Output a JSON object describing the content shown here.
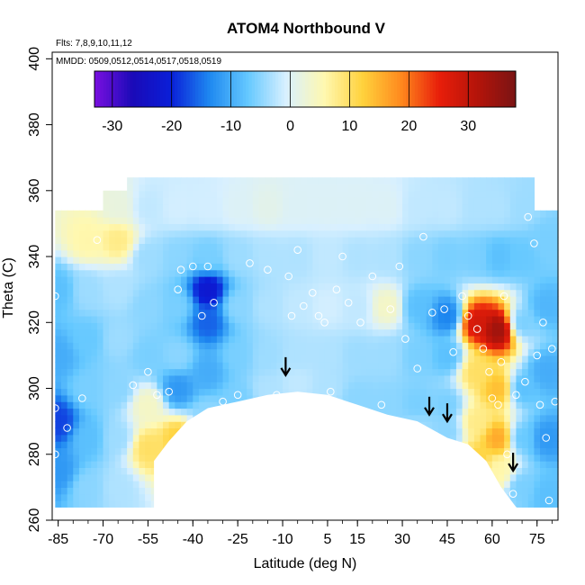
{
  "chart_data": {
    "type": "heatmap",
    "title": "ATOM4 Northbound V",
    "subtitle_flights": "Flts: 7,8,9,10,11,12",
    "subtitle_dates": "MMDD: 0509,0512,0514,0517,0518,0519",
    "xlabel": "Latitude (deg N)",
    "ylabel": "Theta (C)",
    "xlim": [
      -87,
      82
    ],
    "ylim": [
      260,
      402
    ],
    "x_ticks": [
      -85,
      -70,
      -55,
      -40,
      -25,
      -10,
      5,
      15,
      30,
      45,
      60,
      75
    ],
    "y_ticks": [
      260,
      280,
      300,
      320,
      340,
      360,
      380,
      400
    ],
    "colorbar": {
      "range": [
        -33,
        38
      ],
      "tick_values": [
        -30,
        -20,
        -10,
        0,
        10,
        20,
        30
      ],
      "colors": [
        "#7a10e0",
        "#1a0ab8",
        "#0a1fd8",
        "#1e88f0",
        "#64c8ff",
        "#d8f0ff",
        "#fff8b0",
        "#ffd23c",
        "#ff8a1e",
        "#e81e0a",
        "#b4140a",
        "#7a1414"
      ]
    },
    "cells": [
      {
        "lat": -85,
        "theta": 330,
        "v": -8
      },
      {
        "lat": -85,
        "theta": 310,
        "v": -10
      },
      {
        "lat": -85,
        "theta": 290,
        "v": -18
      },
      {
        "lat": -85,
        "theta": 275,
        "v": -12
      },
      {
        "lat": -75,
        "theta": 345,
        "v": 6
      },
      {
        "lat": -75,
        "theta": 330,
        "v": -4
      },
      {
        "lat": -75,
        "theta": 315,
        "v": -7
      },
      {
        "lat": -75,
        "theta": 300,
        "v": -6
      },
      {
        "lat": -75,
        "theta": 285,
        "v": -8
      },
      {
        "lat": -75,
        "theta": 270,
        "v": -5
      },
      {
        "lat": -65,
        "theta": 355,
        "v": 2
      },
      {
        "lat": -65,
        "theta": 345,
        "v": 8
      },
      {
        "lat": -65,
        "theta": 330,
        "v": -3
      },
      {
        "lat": -65,
        "theta": 315,
        "v": -4
      },
      {
        "lat": -65,
        "theta": 300,
        "v": -5
      },
      {
        "lat": -65,
        "theta": 285,
        "v": -4
      },
      {
        "lat": -65,
        "theta": 270,
        "v": -3
      },
      {
        "lat": -55,
        "theta": 355,
        "v": -2
      },
      {
        "lat": -55,
        "theta": 340,
        "v": -4
      },
      {
        "lat": -55,
        "theta": 325,
        "v": -5
      },
      {
        "lat": -55,
        "theta": 310,
        "v": -6
      },
      {
        "lat": -55,
        "theta": 295,
        "v": 4
      },
      {
        "lat": -55,
        "theta": 282,
        "v": 10
      },
      {
        "lat": -45,
        "theta": 355,
        "v": -1
      },
      {
        "lat": -45,
        "theta": 340,
        "v": -5
      },
      {
        "lat": -45,
        "theta": 325,
        "v": -6
      },
      {
        "lat": -45,
        "theta": 310,
        "v": -5
      },
      {
        "lat": -45,
        "theta": 300,
        "v": -12
      },
      {
        "lat": -45,
        "theta": 285,
        "v": 12
      },
      {
        "lat": -35,
        "theta": 355,
        "v": -1
      },
      {
        "lat": -35,
        "theta": 340,
        "v": -6
      },
      {
        "lat": -35,
        "theta": 330,
        "v": -22
      },
      {
        "lat": -35,
        "theta": 320,
        "v": -16
      },
      {
        "lat": -35,
        "theta": 305,
        "v": -10
      },
      {
        "lat": -35,
        "theta": 292,
        "v": -5
      },
      {
        "lat": -25,
        "theta": 355,
        "v": 0
      },
      {
        "lat": -25,
        "theta": 340,
        "v": -4
      },
      {
        "lat": -25,
        "theta": 325,
        "v": -5
      },
      {
        "lat": -25,
        "theta": 310,
        "v": -6
      },
      {
        "lat": -25,
        "theta": 297,
        "v": -6
      },
      {
        "lat": -15,
        "theta": 355,
        "v": 1
      },
      {
        "lat": -15,
        "theta": 340,
        "v": -3
      },
      {
        "lat": -15,
        "theta": 325,
        "v": -3
      },
      {
        "lat": -15,
        "theta": 310,
        "v": -4
      },
      {
        "lat": -15,
        "theta": 300,
        "v": -3
      },
      {
        "lat": -5,
        "theta": 355,
        "v": 0
      },
      {
        "lat": -5,
        "theta": 340,
        "v": -3
      },
      {
        "lat": -5,
        "theta": 325,
        "v": -2
      },
      {
        "lat": -5,
        "theta": 310,
        "v": -3
      },
      {
        "lat": -5,
        "theta": 302,
        "v": -2
      },
      {
        "lat": 5,
        "theta": 355,
        "v": 0
      },
      {
        "lat": 5,
        "theta": 340,
        "v": -2
      },
      {
        "lat": 5,
        "theta": 325,
        "v": -1
      },
      {
        "lat": 5,
        "theta": 310,
        "v": -3
      },
      {
        "lat": 5,
        "theta": 300,
        "v": -3
      },
      {
        "lat": 15,
        "theta": 355,
        "v": 0
      },
      {
        "lat": 15,
        "theta": 340,
        "v": -3
      },
      {
        "lat": 15,
        "theta": 325,
        "v": -2
      },
      {
        "lat": 15,
        "theta": 310,
        "v": -4
      },
      {
        "lat": 15,
        "theta": 297,
        "v": -5
      },
      {
        "lat": 25,
        "theta": 355,
        "v": 0
      },
      {
        "lat": 25,
        "theta": 340,
        "v": -3
      },
      {
        "lat": 25,
        "theta": 325,
        "v": 4
      },
      {
        "lat": 25,
        "theta": 310,
        "v": -4
      },
      {
        "lat": 25,
        "theta": 295,
        "v": -5
      },
      {
        "lat": 35,
        "theta": 355,
        "v": -2
      },
      {
        "lat": 35,
        "theta": 340,
        "v": -5
      },
      {
        "lat": 35,
        "theta": 325,
        "v": -8
      },
      {
        "lat": 35,
        "theta": 310,
        "v": -6
      },
      {
        "lat": 35,
        "theta": 295,
        "v": -6
      },
      {
        "lat": 35,
        "theta": 288,
        "v": -4
      },
      {
        "lat": 45,
        "theta": 355,
        "v": -2
      },
      {
        "lat": 45,
        "theta": 340,
        "v": -6
      },
      {
        "lat": 45,
        "theta": 322,
        "v": -14
      },
      {
        "lat": 45,
        "theta": 310,
        "v": -8
      },
      {
        "lat": 45,
        "theta": 295,
        "v": -6
      },
      {
        "lat": 45,
        "theta": 287,
        "v": -5
      },
      {
        "lat": 55,
        "theta": 355,
        "v": -3
      },
      {
        "lat": 55,
        "theta": 340,
        "v": -6
      },
      {
        "lat": 55,
        "theta": 320,
        "v": 28
      },
      {
        "lat": 55,
        "theta": 305,
        "v": 10
      },
      {
        "lat": 55,
        "theta": 290,
        "v": 8
      },
      {
        "lat": 55,
        "theta": 278,
        "v": 12
      },
      {
        "lat": 62,
        "theta": 355,
        "v": -3
      },
      {
        "lat": 62,
        "theta": 340,
        "v": -8
      },
      {
        "lat": 62,
        "theta": 318,
        "v": 34
      },
      {
        "lat": 62,
        "theta": 300,
        "v": 14
      },
      {
        "lat": 62,
        "theta": 285,
        "v": 16
      },
      {
        "lat": 62,
        "theta": 275,
        "v": 6
      },
      {
        "lat": 70,
        "theta": 355,
        "v": -4
      },
      {
        "lat": 70,
        "theta": 340,
        "v": -7
      },
      {
        "lat": 70,
        "theta": 320,
        "v": -6
      },
      {
        "lat": 70,
        "theta": 300,
        "v": -8
      },
      {
        "lat": 70,
        "theta": 285,
        "v": -7
      },
      {
        "lat": 70,
        "theta": 270,
        "v": -6
      },
      {
        "lat": 78,
        "theta": 345,
        "v": -6
      },
      {
        "lat": 78,
        "theta": 325,
        "v": -9
      },
      {
        "lat": 78,
        "theta": 305,
        "v": -10
      },
      {
        "lat": 78,
        "theta": 285,
        "v": -12
      },
      {
        "lat": 78,
        "theta": 268,
        "v": -8
      }
    ],
    "observations": [
      {
        "lat": -86,
        "theta": 328
      },
      {
        "lat": -82,
        "theta": 288
      },
      {
        "lat": -86,
        "theta": 294
      },
      {
        "lat": -86,
        "theta": 280
      },
      {
        "lat": -72,
        "theta": 345
      },
      {
        "lat": -77,
        "theta": 297
      },
      {
        "lat": -60,
        "theta": 301
      },
      {
        "lat": -55,
        "theta": 305
      },
      {
        "lat": -52,
        "theta": 298
      },
      {
        "lat": -48,
        "theta": 299
      },
      {
        "lat": -45,
        "theta": 330
      },
      {
        "lat": -44,
        "theta": 336
      },
      {
        "lat": -40,
        "theta": 337
      },
      {
        "lat": -37,
        "theta": 322
      },
      {
        "lat": -35,
        "theta": 337
      },
      {
        "lat": -33,
        "theta": 326
      },
      {
        "lat": -30,
        "theta": 296
      },
      {
        "lat": -25,
        "theta": 298
      },
      {
        "lat": -21,
        "theta": 338
      },
      {
        "lat": -15,
        "theta": 336
      },
      {
        "lat": -12,
        "theta": 298
      },
      {
        "lat": -8,
        "theta": 334
      },
      {
        "lat": -7,
        "theta": 322
      },
      {
        "lat": -5,
        "theta": 342
      },
      {
        "lat": -3,
        "theta": 325
      },
      {
        "lat": 0,
        "theta": 329
      },
      {
        "lat": 2,
        "theta": 322
      },
      {
        "lat": 4,
        "theta": 320
      },
      {
        "lat": 6,
        "theta": 299
      },
      {
        "lat": 8,
        "theta": 330
      },
      {
        "lat": 10,
        "theta": 340
      },
      {
        "lat": 12,
        "theta": 326
      },
      {
        "lat": 16,
        "theta": 320
      },
      {
        "lat": 20,
        "theta": 334
      },
      {
        "lat": 23,
        "theta": 295
      },
      {
        "lat": 26,
        "theta": 324
      },
      {
        "lat": 29,
        "theta": 337
      },
      {
        "lat": 31,
        "theta": 315
      },
      {
        "lat": 35,
        "theta": 306
      },
      {
        "lat": 37,
        "theta": 346
      },
      {
        "lat": 40,
        "theta": 323
      },
      {
        "lat": 44,
        "theta": 324
      },
      {
        "lat": 47,
        "theta": 311
      },
      {
        "lat": 50,
        "theta": 328
      },
      {
        "lat": 52,
        "theta": 322
      },
      {
        "lat": 55,
        "theta": 318
      },
      {
        "lat": 57,
        "theta": 312
      },
      {
        "lat": 59,
        "theta": 305
      },
      {
        "lat": 60,
        "theta": 297
      },
      {
        "lat": 62,
        "theta": 295
      },
      {
        "lat": 63,
        "theta": 308
      },
      {
        "lat": 64,
        "theta": 328
      },
      {
        "lat": 65,
        "theta": 280
      },
      {
        "lat": 67,
        "theta": 268
      },
      {
        "lat": 68,
        "theta": 298
      },
      {
        "lat": 71,
        "theta": 302
      },
      {
        "lat": 72,
        "theta": 352
      },
      {
        "lat": 74,
        "theta": 344
      },
      {
        "lat": 75,
        "theta": 310
      },
      {
        "lat": 76,
        "theta": 295
      },
      {
        "lat": 77,
        "theta": 320
      },
      {
        "lat": 78,
        "theta": 285
      },
      {
        "lat": 79,
        "theta": 266
      },
      {
        "lat": 78,
        "theta": 356
      },
      {
        "lat": 80,
        "theta": 312
      },
      {
        "lat": 81,
        "theta": 296
      }
    ],
    "terrain_boundary": [
      [
        -53,
        260
      ],
      [
        -53,
        278
      ],
      [
        -48,
        284
      ],
      [
        -42,
        290
      ],
      [
        -35,
        294
      ],
      [
        -25,
        296
      ],
      [
        -15,
        298
      ],
      [
        -5,
        299
      ],
      [
        5,
        298
      ],
      [
        15,
        295
      ],
      [
        25,
        292
      ],
      [
        35,
        290
      ],
      [
        45,
        285
      ],
      [
        52,
        283
      ],
      [
        58,
        278
      ],
      [
        63,
        270
      ],
      [
        68,
        264
      ],
      [
        72,
        262
      ],
      [
        75,
        260
      ]
    ],
    "arrows": [
      {
        "lat": -9,
        "theta": 304
      },
      {
        "lat": 39,
        "theta": 292
      },
      {
        "lat": 45,
        "theta": 290
      },
      {
        "lat": 67,
        "theta": 275
      }
    ]
  }
}
